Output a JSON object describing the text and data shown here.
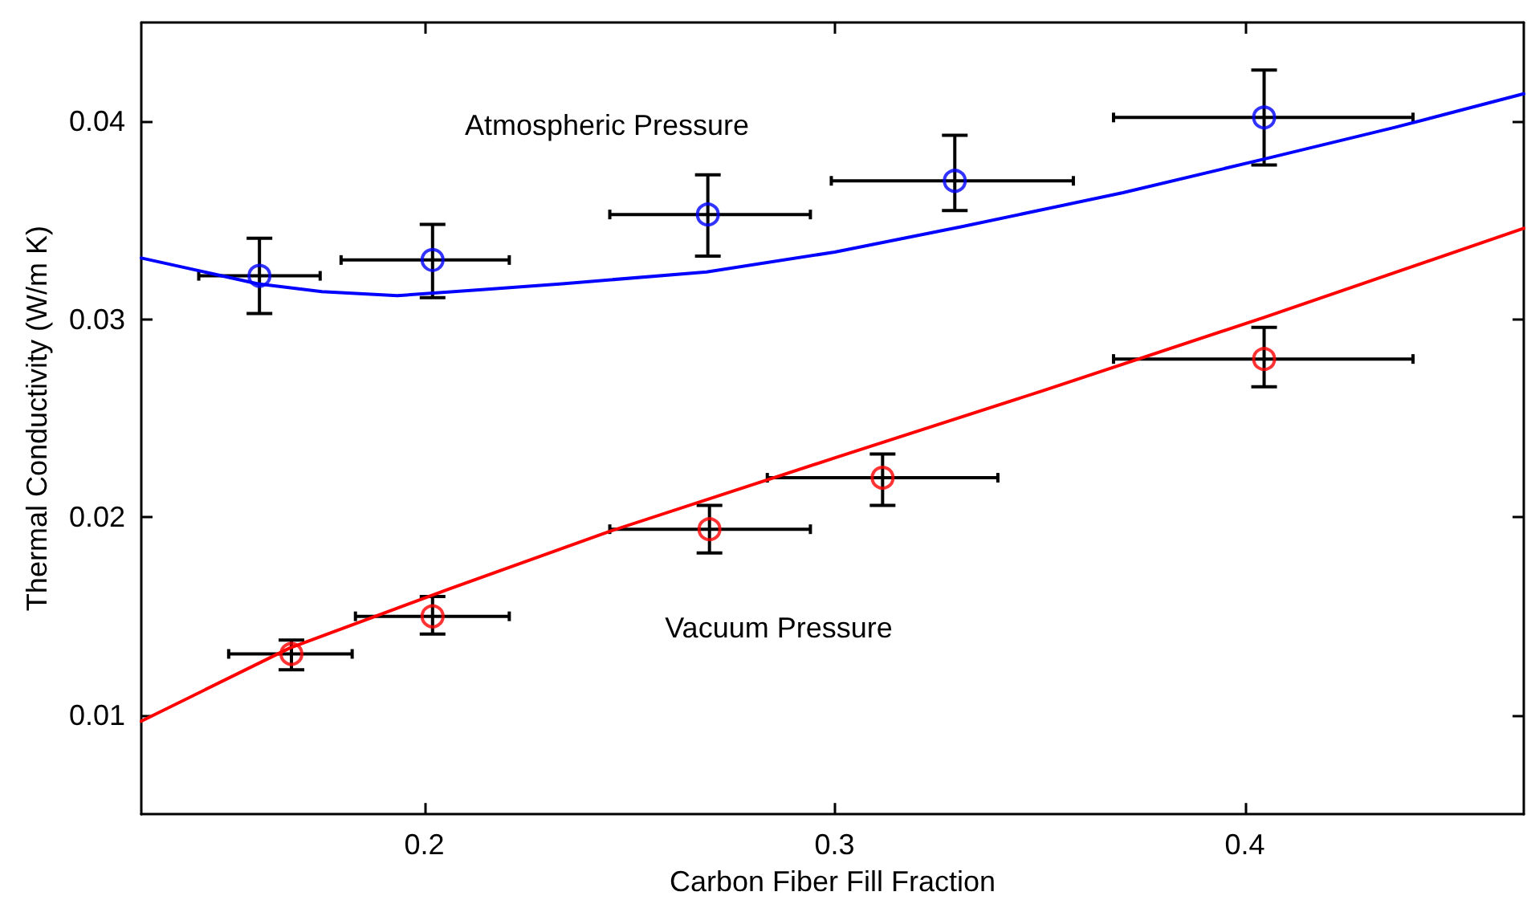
{
  "chart_data": {
    "type": "scatter",
    "xlabel": "Carbon Fiber Fill Fraction",
    "ylabel": "Thermal Conductivity (W/m K)",
    "xlim": [
      0.131,
      0.468
    ],
    "ylim": [
      0.005,
      0.045
    ],
    "xticks": [
      0.2,
      0.3,
      0.4
    ],
    "yticks": [
      0.01,
      0.02,
      0.03,
      0.04
    ],
    "grid": false,
    "marker": "circle",
    "annotations": [
      "Atmospheric Pressure",
      "Vacuum Pressure"
    ],
    "series": [
      {
        "color": "#0000ff",
        "x": [
          0.1598,
          0.202,
          0.2691,
          0.3293,
          0.4047
        ],
        "values": [
          0.0322,
          0.033,
          0.0353,
          0.037,
          0.0402
        ],
        "errors": [
          [
            0.0303,
            0.0341
          ],
          [
            0.0311,
            0.0348
          ],
          [
            0.0332,
            0.0373
          ],
          [
            0.0355,
            0.0393
          ],
          [
            0.0378,
            0.0426
          ]
        ],
        "xerrors": [
          [
            0.145,
            0.1746
          ],
          [
            0.1797,
            0.2207
          ],
          [
            0.2452,
            0.2941
          ],
          [
            0.2992,
            0.3582
          ],
          [
            0.368,
            0.441
          ]
        ]
      },
      {
        "color": "#ff0000",
        "x": [
          0.1676,
          0.202,
          0.2695,
          0.3117,
          0.4047
        ],
        "values": [
          0.0131,
          0.015,
          0.0194,
          0.022,
          0.028
        ],
        "errors": [
          [
            0.0123,
            0.0138
          ],
          [
            0.0141,
            0.016
          ],
          [
            0.0182,
            0.0206
          ],
          [
            0.0206,
            0.0232
          ],
          [
            0.0266,
            0.0296
          ]
        ],
        "xerrors": [
          [
            0.1523,
            0.1824
          ],
          [
            0.1832,
            0.2207
          ],
          [
            0.2452,
            0.2941
          ],
          [
            0.2836,
            0.3398
          ],
          [
            0.368,
            0.441
          ]
        ]
      },
      {
        "type": "line",
        "marker": "none",
        "color": "#0000ff",
        "x": [
          0.131,
          0.1594,
          0.175,
          0.1934,
          0.2141,
          0.2336,
          0.2688,
          0.3,
          0.3313,
          0.3703,
          0.4047,
          0.4366,
          0.468
        ],
        "values": [
          0.0331,
          0.0318,
          0.0314,
          0.0312,
          0.0315,
          0.0318,
          0.0324,
          0.0334,
          0.0347,
          0.0364,
          0.0381,
          0.0397,
          0.0414
        ]
      },
      {
        "type": "line",
        "marker": "none",
        "color": "#ff0000",
        "x": [
          0.131,
          0.1672,
          0.2063,
          0.2453,
          0.3,
          0.3508,
          0.4047,
          0.468
        ],
        "values": [
          0.0097,
          0.0134,
          0.0164,
          0.0193,
          0.023,
          0.0264,
          0.0301,
          0.0346
        ]
      }
    ]
  }
}
